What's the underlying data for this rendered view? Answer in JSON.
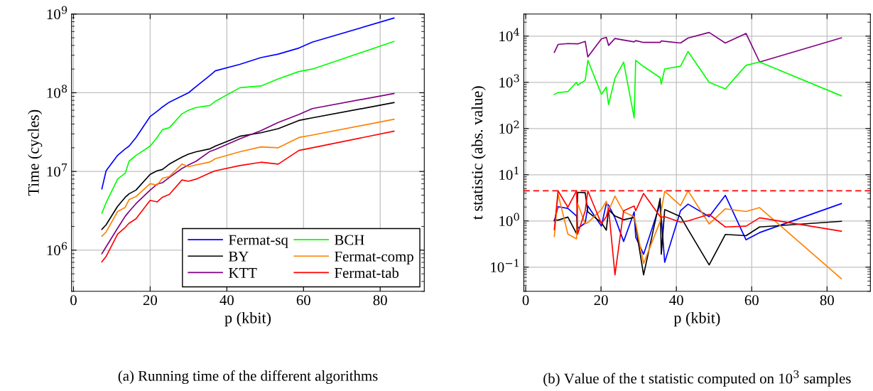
{
  "chart_data": [
    {
      "type": "line",
      "xlabel": "p (kbit)",
      "ylabel": "Time (cycles)",
      "log": "y",
      "grid": true,
      "legend": "bottom right",
      "marker": "none",
      "line_style": "solid",
      "xlim": [
        -0.5,
        91.5
      ],
      "xticks": [
        0,
        20,
        40,
        60,
        80
      ],
      "ylim": [
        300000,
        1000000000
      ],
      "yticks": [
        {
          "value": 1000000,
          "label": "10$^{6}$"
        },
        {
          "value": 10000000,
          "label": "10$^{7}$"
        },
        {
          "value": 100000000,
          "label": "10$^{8}$"
        },
        {
          "value": 1000000000,
          "label": "10$^{9}$"
        }
      ],
      "x": [
        7.4,
        8.5,
        11.5,
        13.5,
        14.5,
        16.3,
        20,
        21.8,
        23.2,
        25,
        28.3,
        30,
        32,
        35.6,
        37,
        43.4,
        48.9,
        53.4,
        58.8,
        62.3,
        83.6
      ],
      "series": [
        {
          "name": "Fermat-sq",
          "color": "#0000ff",
          "values": [
            6000000,
            10200000,
            16000000,
            19400000,
            21000000,
            27000000,
            50000000,
            58000000,
            66000000,
            76000000,
            91000000,
            100000000,
            120000000,
            166000000,
            190000000,
            230000000,
            280000000,
            310000000,
            370000000,
            440000000,
            890000000
          ]
        },
        {
          "name": "BY",
          "color": "#000000",
          "values": [
            1840000,
            2100000,
            3600000,
            4700000,
            5200000,
            5800000,
            9200000,
            10200000,
            10600000,
            12400000,
            15200000,
            16600000,
            17800000,
            19400000,
            21000000,
            28000000,
            31000000,
            35000000,
            44500000,
            48000000,
            75000000
          ]
        },
        {
          "name": "KTT",
          "color": "#800080",
          "values": [
            900000,
            1100000,
            1900000,
            2700000,
            3100000,
            3900000,
            5800000,
            6900000,
            7200000,
            8400000,
            10900000,
            12100000,
            13500000,
            18000000,
            19000000,
            26000000,
            33000000,
            42000000,
            53000000,
            63000000,
            98000000
          ]
        },
        {
          "name": "BCH",
          "color": "#00ff00",
          "values": [
            2950000,
            4000000,
            8000000,
            9500000,
            13500000,
            16000000,
            21000000,
            27000000,
            34000000,
            36000000,
            54000000,
            60000000,
            65000000,
            69000000,
            78000000,
            116000000,
            122000000,
            150000000,
            186000000,
            200000000,
            450000000
          ]
        },
        {
          "name": "Fermat-comp",
          "color": "#ff8000",
          "values": [
            1500000,
            1700000,
            3100000,
            3500000,
            4400000,
            4800000,
            7000000,
            6700000,
            8200000,
            8600000,
            12400000,
            11500000,
            12100000,
            13200000,
            14500000,
            17800000,
            20500000,
            20000000,
            27000000,
            29000000,
            46000000
          ]
        },
        {
          "name": "Fermat-tab",
          "color": "#ff0000",
          "values": [
            710000,
            830000,
            1600000,
            1950000,
            2200000,
            2500000,
            4300000,
            4100000,
            4700000,
            5100000,
            7800000,
            7500000,
            8000000,
            9600000,
            10200000,
            11900000,
            13100000,
            12400000,
            18500000,
            20000000,
            32500000
          ]
        }
      ],
      "annotations": [
        "(a) Running time of the different algorithms"
      ]
    },
    {
      "type": "line",
      "xlabel": "p (kbit)",
      "ylabel": "t statistic (abs. value)",
      "log": "y",
      "grid": true,
      "marker": "none",
      "line_style": "solid",
      "xlim": [
        -0.5,
        91.5
      ],
      "xticks": [
        0,
        20,
        40,
        60,
        80
      ],
      "ylim": [
        0.03,
        30000
      ],
      "yticks": [
        {
          "value": 0.1,
          "label": "10$^{−1}$"
        },
        {
          "value": 1,
          "label": "10$^{0}$"
        },
        {
          "value": 10,
          "label": "10$^{1}$"
        },
        {
          "value": 100,
          "label": "10$^{2}$"
        },
        {
          "value": 1000,
          "label": "10$^{3}$"
        },
        {
          "value": 10000,
          "label": "10$^{4}$"
        }
      ],
      "x": [
        7.6,
        8.6,
        11.2,
        13.5,
        13.8,
        15.8,
        16.5,
        20.1,
        21.4,
        22.0,
        23.7,
        26.0,
        28.8,
        29.2,
        31.3,
        35.7,
        36.0,
        36.9,
        41.1,
        43.1,
        48.7,
        53.0,
        58.5,
        62.1,
        83.8
      ],
      "series": [
        {
          "color": "#0000ff",
          "values": [
            1.0,
            2.03,
            1.87,
            1.28,
            0.69,
            0.9,
            2.1,
            0.77,
            2.37,
            2.2,
            1.17,
            0.36,
            1.57,
            0.45,
            0.19,
            2.37,
            1.17,
            0.127,
            1.66,
            2.31,
            1.24,
            3.58,
            0.39,
            0.56,
            2.37
          ]
        },
        {
          "color": "#000000",
          "values": [
            1.04,
            1.04,
            1.21,
            0.53,
            4.17,
            4.08,
            1.57,
            0.92,
            0.63,
            1.76,
            1.28,
            1.06,
            1.19,
            0.78,
            0.068,
            3.07,
            0.19,
            1.76,
            1.24,
            0.65,
            0.112,
            0.51,
            0.48,
            0.74,
            0.98
          ]
        },
        {
          "color": "#800080",
          "values": [
            4470,
            6600,
            6900,
            6800,
            6800,
            7700,
            3550,
            8700,
            9400,
            6300,
            8900,
            8200,
            7500,
            8000,
            7300,
            7300,
            7900,
            7700,
            7100,
            9100,
            12000,
            7100,
            11400,
            2750,
            9200
          ]
        },
        {
          "color": "#00ff00",
          "values": [
            550,
            600,
            630,
            1000,
            870,
            1100,
            3000,
            550,
            790,
            330,
            1230,
            2740,
            170,
            3000,
            2200,
            1260,
            920,
            1950,
            2230,
            4650,
            1000,
            720,
            2330,
            2750,
            510
          ]
        },
        {
          "color": "#ff8000",
          "values": [
            0.46,
            3.8,
            0.52,
            0.41,
            2.37,
            0.87,
            0.92,
            1.76,
            2.66,
            1.66,
            3.45,
            1.57,
            1.24,
            0.88,
            0.12,
            0.98,
            1.66,
            4.37,
            2.15,
            4.5,
            0.86,
            1.83,
            1.6,
            1.94,
            0.056
          ]
        },
        {
          "color": "#ff0000",
          "values": [
            0.65,
            4.48,
            1.98,
            4.48,
            0.52,
            1.66,
            4.48,
            0.87,
            1.24,
            1.9,
            0.068,
            1.66,
            2.1,
            1.66,
            3.93,
            1.24,
            1.2,
            1.24,
            0.94,
            1.0,
            1.39,
            0.74,
            0.77,
            1.17,
            0.6
          ]
        }
      ],
      "ref_lines": [
        {
          "axis": "y",
          "value": 4.5,
          "color": "#ff0000",
          "line_style": "dashed"
        }
      ],
      "annotations": [
        "(b) Value of the t statistic computed on 10$^{3}$ samples"
      ]
    }
  ]
}
